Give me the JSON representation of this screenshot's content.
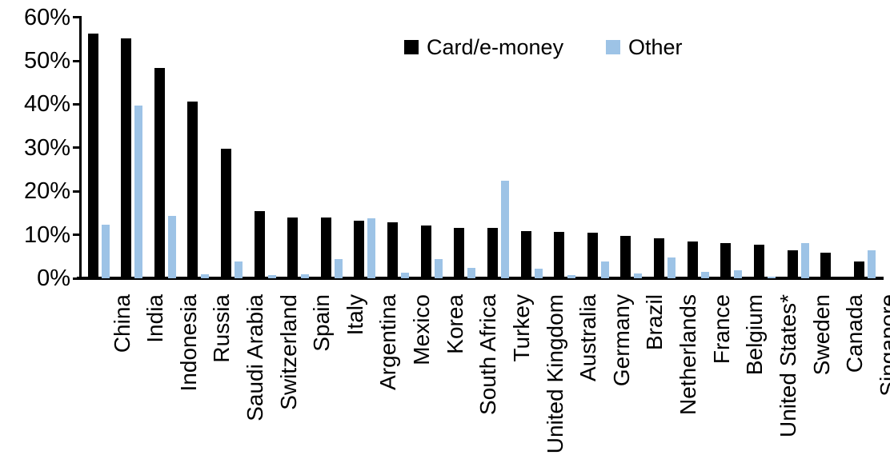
{
  "chart_data": {
    "type": "bar",
    "title": "",
    "categories": [
      "China",
      "India",
      "Indonesia",
      "Russia",
      "Saudi Arabia",
      "Switzerland",
      "Spain",
      "Italy",
      "Argentina",
      "Mexico",
      "Korea",
      "South Africa",
      "Turkey",
      "United Kingdom",
      "Australia",
      "Germany",
      "Brazil",
      "Netherlands",
      "France",
      "Belgium",
      "United States*",
      "Sweden",
      "Canada",
      "Singapore"
    ],
    "series": [
      {
        "name": "Card/e-money",
        "color": "#000000",
        "values": [
          56.3,
          55.2,
          48.3,
          40.6,
          29.8,
          15.5,
          14.0,
          13.9,
          13.2,
          12.8,
          12.1,
          11.6,
          11.5,
          10.9,
          10.7,
          10.5,
          9.8,
          9.1,
          8.5,
          8.0,
          7.8,
          6.4,
          5.8,
          3.9
        ]
      },
      {
        "name": "Other",
        "color": "#9DC3E6",
        "values": [
          12.3,
          39.7,
          14.4,
          0.9,
          3.8,
          0.7,
          0.9,
          4.4,
          13.8,
          1.2,
          4.5,
          2.3,
          22.5,
          2.2,
          0.8,
          3.9,
          1.1,
          4.7,
          1.4,
          1.9,
          0.3,
          8.1,
          0.0,
          6.5
        ]
      }
    ],
    "ylim": [
      0,
      60
    ],
    "ytick_step": 10,
    "yticks": [
      "0%",
      "10%",
      "20%",
      "30%",
      "40%",
      "50%",
      "60%"
    ],
    "legend_position": "top-center",
    "grid": false,
    "x_label_rotation": -90
  }
}
